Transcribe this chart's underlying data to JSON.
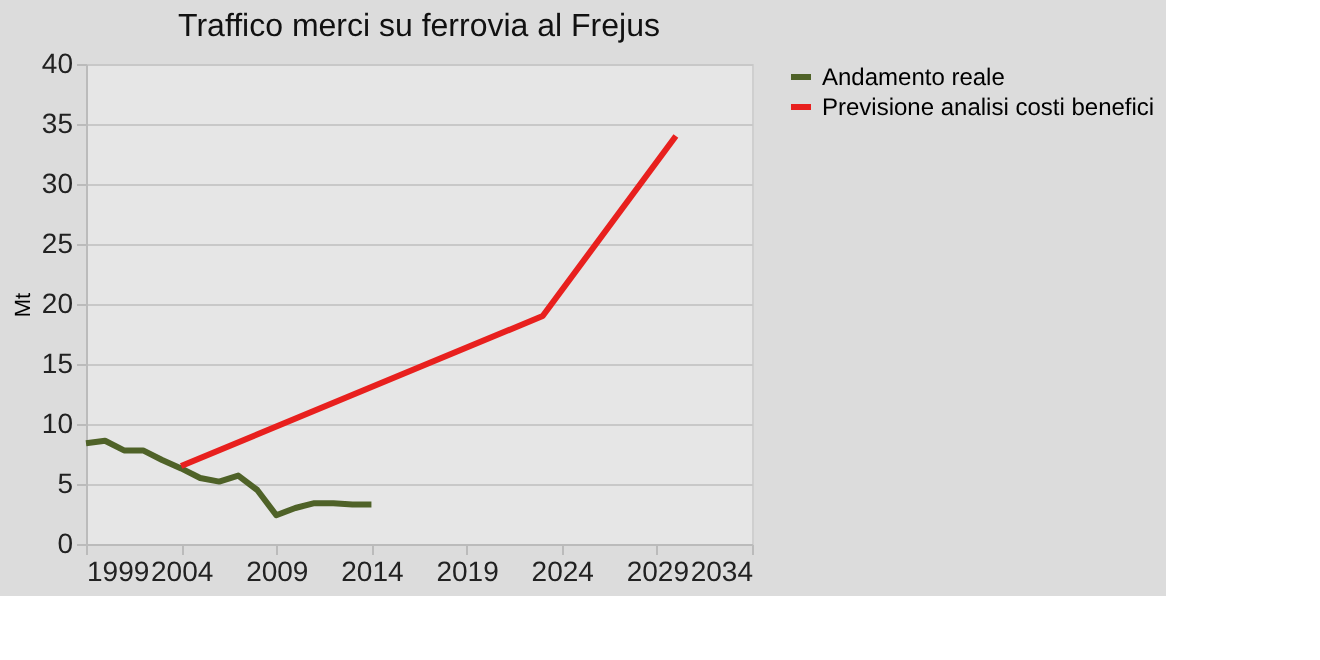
{
  "chart_data": {
    "type": "line",
    "title": "Traffico merci su ferrovia al Frejus",
    "ylabel": "Mt",
    "xlim": [
      1999,
      2034
    ],
    "xticks": [
      1999,
      2004,
      2009,
      2014,
      2019,
      2024,
      2029,
      2034
    ],
    "ylim": [
      0,
      40
    ],
    "yticks": [
      0,
      5,
      10,
      15,
      20,
      25,
      30,
      35,
      40
    ],
    "grid": "y",
    "legend": "right",
    "marker": "none",
    "line_style": "solid",
    "series": [
      {
        "name": "Andamento reale",
        "color": "#4f6228",
        "x": [
          1999,
          2000,
          2001,
          2002,
          2003,
          2004,
          2005,
          2006,
          2007,
          2008,
          2009,
          2010,
          2011,
          2012,
          2013,
          2014
        ],
        "values": [
          8.4,
          8.6,
          7.8,
          7.8,
          7.0,
          6.3,
          5.5,
          5.2,
          5.7,
          4.5,
          2.4,
          3.0,
          3.4,
          3.4,
          3.3,
          3.3
        ]
      },
      {
        "name": "Previsione analisi costi benefici",
        "color": "#e8201e",
        "x": [
          2004,
          2023,
          2030
        ],
        "values": [
          6.5,
          19,
          34
        ]
      }
    ]
  }
}
